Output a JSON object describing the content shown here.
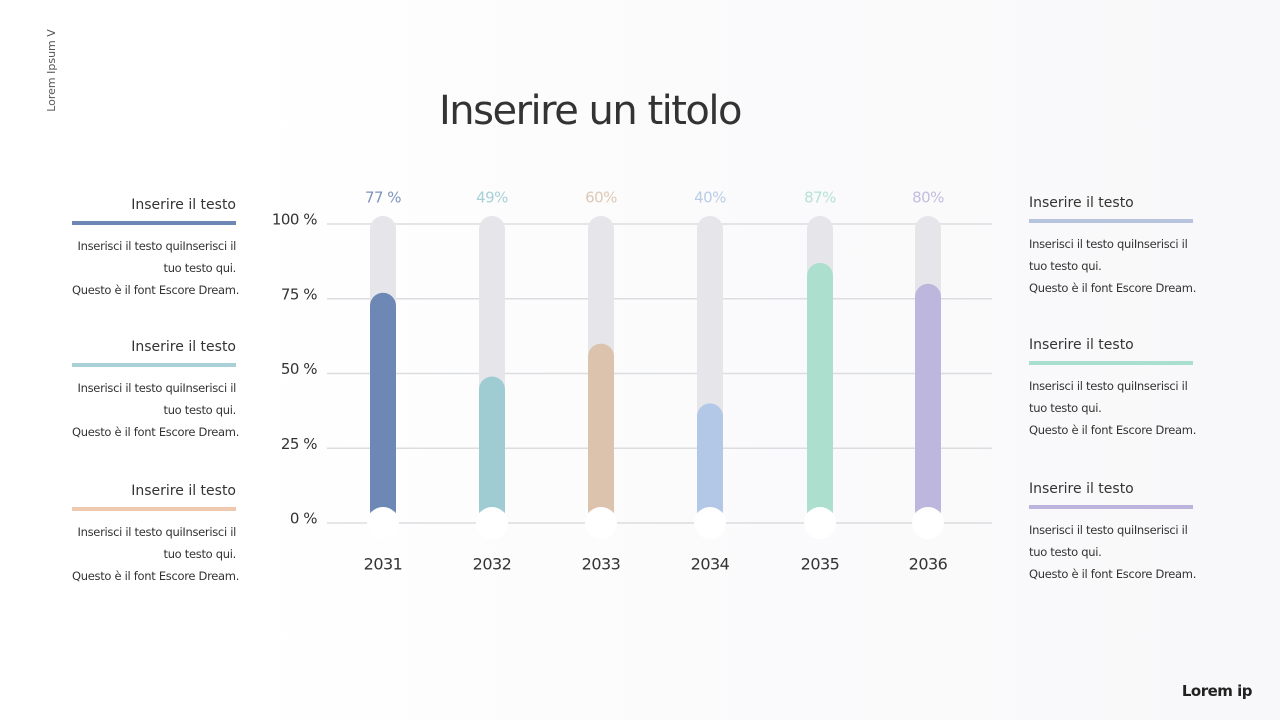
{
  "header": {
    "side_label": "Lorem Ipsum V",
    "title": "Inserire un titolo"
  },
  "chart_data": {
    "type": "bar",
    "categories": [
      "2031",
      "2032",
      "2033",
      "2034",
      "2035",
      "2036"
    ],
    "values": [
      77,
      49,
      60,
      40,
      87,
      80
    ],
    "value_labels": [
      "77 %",
      "49%",
      "60%",
      "40%",
      "87%",
      "80%"
    ],
    "colors": [
      "#6e88b5",
      "#9fccd3",
      "#dcc3ae",
      "#b3c8e6",
      "#addfcf",
      "#bdb6dd"
    ],
    "ylim": [
      0,
      100
    ],
    "yticks": [
      {
        "value": 0,
        "label": "0 %"
      },
      {
        "value": 25,
        "label": "25 %"
      },
      {
        "value": 50,
        "label": "50 %"
      },
      {
        "value": 75,
        "label": "75 %"
      },
      {
        "value": 100,
        "label": "100 %"
      }
    ],
    "grid": true
  },
  "panels": {
    "left": [
      {
        "title": "Inserire il testo",
        "lines": [
          "Inserisci il testo quiInserisci il",
          "tuo testo qui.",
          "Questo è il font Escore Dream."
        ]
      },
      {
        "title": "Inserire il testo",
        "lines": [
          "Inserisci il testo quiInserisci il",
          "tuo testo qui.",
          "Questo è il font Escore Dream."
        ]
      },
      {
        "title": "Inserire il testo",
        "lines": [
          "Inserisci il testo quiInserisci il",
          "tuo testo qui.",
          "Questo è il font Escore Dream."
        ]
      }
    ],
    "right": [
      {
        "title": "Inserire il testo",
        "lines": [
          "Inserisci il testo quiInserisci il",
          "tuo testo qui.",
          "Questo è il font Escore Dream."
        ]
      },
      {
        "title": "Inserire il testo",
        "lines": [
          "Inserisci il testo quiInserisci il",
          "tuo testo qui.",
          "Questo è il font Escore Dream."
        ]
      },
      {
        "title": "Inserire il testo",
        "lines": [
          "Inserisci il testo quiInserisci il",
          "tuo testo qui.",
          "Questo è il font Escore Dream."
        ]
      }
    ]
  },
  "footer": {
    "logo": "Lorem ip"
  }
}
